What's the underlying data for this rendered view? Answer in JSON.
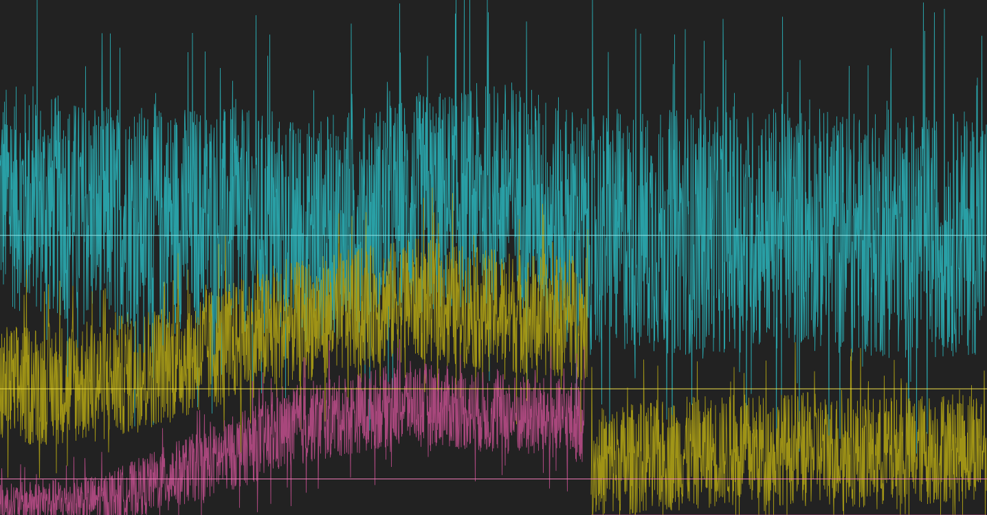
{
  "chart_data": {
    "type": "line",
    "title": "",
    "xlabel": "",
    "ylabel": "",
    "grid": false,
    "legend": "none",
    "x_range": [
      0,
      1435
    ],
    "y_range": [
      0,
      1
    ],
    "background_color": "#222222",
    "series": [
      {
        "color": "#2aa7ad",
        "mean_line_color": "#8fe3e6",
        "mean": 0.543,
        "segments": [
          {
            "x": [
              0,
              150,
              300,
              450,
              600,
              750,
              850,
              1000,
              1150,
              1300,
              1435
            ],
            "center": [
              0.62,
              0.58,
              0.58,
              0.55,
              0.6,
              0.63,
              0.55,
              0.55,
              0.56,
              0.54,
              0.55
            ],
            "spread": [
              0.22,
              0.22,
              0.22,
              0.22,
              0.22,
              0.22,
              0.24,
              0.24,
              0.24,
              0.24,
              0.24
            ]
          }
        ]
      },
      {
        "color": "#a69a16",
        "mean_line_color": "#f2e24a",
        "mean": 0.245,
        "segments": [
          {
            "x": [
              0,
              150,
              300,
              450,
              600,
              700,
              855
            ],
            "center": [
              0.25,
              0.26,
              0.32,
              0.38,
              0.42,
              0.4,
              0.38
            ],
            "spread": [
              0.12,
              0.12,
              0.12,
              0.12,
              0.12,
              0.12,
              0.12
            ]
          },
          {
            "x": [
              860,
              1000,
              1150,
              1300,
              1435
            ],
            "center": [
              0.1,
              0.12,
              0.13,
              0.12,
              0.14
            ],
            "spread": [
              0.11,
              0.11,
              0.11,
              0.11,
              0.11
            ]
          }
        ]
      },
      {
        "color": "#b04a82",
        "mean_line_color": "#f07ab8",
        "mean": 0.07,
        "segments": [
          {
            "x": [
              0,
              150,
              300,
              450,
              600,
              700,
              850
            ],
            "center": [
              0.02,
              0.03,
              0.1,
              0.18,
              0.22,
              0.2,
              0.18
            ],
            "spread": [
              0.04,
              0.05,
              0.07,
              0.08,
              0.08,
              0.08,
              0.08
            ]
          },
          {
            "x": [
              860,
              1435
            ],
            "center": [
              0.0,
              0.0
            ],
            "spread": [
              0.0,
              0.0
            ]
          }
        ]
      }
    ]
  }
}
